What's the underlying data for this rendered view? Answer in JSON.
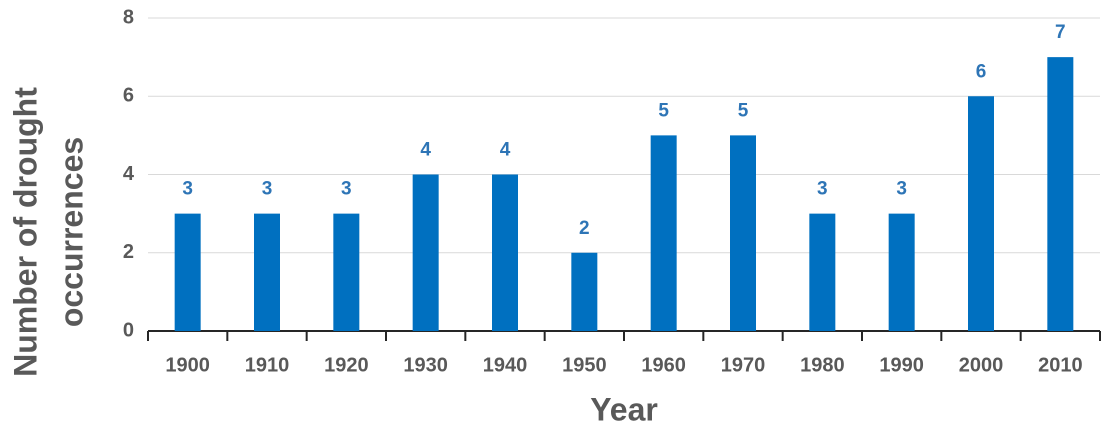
{
  "chart_data": {
    "type": "bar",
    "categories": [
      "1900",
      "1910",
      "1920",
      "1930",
      "1940",
      "1950",
      "1960",
      "1970",
      "1980",
      "1990",
      "2000",
      "2010"
    ],
    "values": [
      3,
      3,
      3,
      4,
      4,
      2,
      5,
      5,
      3,
      3,
      6,
      7
    ],
    "color": "#0070c0",
    "label_color": "#2e75b6",
    "x_label": "Year",
    "y_label": [
      "Number of drought",
      "occurrences"
    ],
    "ylim": [
      0,
      8
    ],
    "yticks": [
      0,
      2,
      4,
      6,
      8
    ],
    "grid": true
  }
}
